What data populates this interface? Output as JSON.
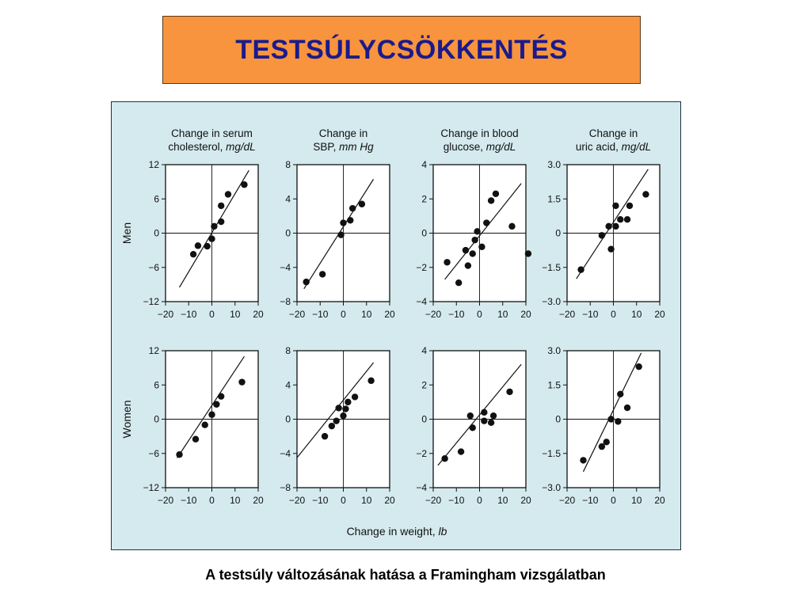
{
  "slide": {
    "title": "TESTSÚLYCSÖKKENTÉS",
    "caption": "A testsúly változásának hatása a Framingham vizsgálatban"
  },
  "figure": {
    "row_labels": [
      "Men",
      "Women"
    ],
    "xlabel": {
      "text": "Change in weight, ",
      "unit": "lb"
    }
  },
  "chart_data": [
    {
      "type": "scatter",
      "row": "Men",
      "title": {
        "plain": "Change in serum\ncholesterol, ",
        "unit": "mg/dL"
      },
      "xlim": [
        -20,
        20
      ],
      "ylim": [
        -12,
        12
      ],
      "yticks": [
        "12",
        "6",
        "0",
        "−6",
        "−12"
      ],
      "xticks": [
        "−20",
        "−10",
        "0",
        "10",
        "20"
      ],
      "points": [
        [
          -8,
          -3.7
        ],
        [
          -6,
          -2.2
        ],
        [
          -2,
          -2.3
        ],
        [
          0,
          -1.0
        ],
        [
          1,
          1.2
        ],
        [
          4,
          2.0
        ],
        [
          4,
          4.8
        ],
        [
          7,
          6.8
        ],
        [
          14,
          8.5
        ]
      ],
      "fit_line": [
        [
          -14,
          -9.5
        ],
        [
          16,
          11.0
        ]
      ]
    },
    {
      "type": "scatter",
      "row": "Men",
      "title": {
        "plain": "Change in\nSBP, ",
        "unit": "mm Hg"
      },
      "xlim": [
        -20,
        20
      ],
      "ylim": [
        -8,
        8
      ],
      "yticks": [
        "8",
        "4",
        "0",
        "−4",
        "−8"
      ],
      "xticks": [
        "−20",
        "−10",
        "0",
        "10",
        "20"
      ],
      "points": [
        [
          -16,
          -5.7
        ],
        [
          -9,
          -4.8
        ],
        [
          -1,
          -0.2
        ],
        [
          0,
          1.2
        ],
        [
          3,
          1.5
        ],
        [
          4,
          2.9
        ],
        [
          8,
          3.4
        ]
      ],
      "fit_line": [
        [
          -17,
          -6.5
        ],
        [
          13,
          6.3
        ]
      ]
    },
    {
      "type": "scatter",
      "row": "Men",
      "title": {
        "plain": "Change in blood\nglucose, ",
        "unit": "mg/dL"
      },
      "xlim": [
        -20,
        20
      ],
      "ylim": [
        -4,
        4
      ],
      "yticks": [
        "4",
        "2",
        "0",
        "−2",
        "−4"
      ],
      "xticks": [
        "−20",
        "−10",
        "0",
        "10",
        "20"
      ],
      "points": [
        [
          -14,
          -1.7
        ],
        [
          -9,
          -2.9
        ],
        [
          -6,
          -1.0
        ],
        [
          -5,
          -1.9
        ],
        [
          -3,
          -1.2
        ],
        [
          -2,
          -0.4
        ],
        [
          -1,
          0.1
        ],
        [
          1,
          -0.8
        ],
        [
          3,
          0.6
        ],
        [
          5,
          1.9
        ],
        [
          7,
          2.3
        ],
        [
          14,
          0.4
        ],
        [
          21,
          -1.2
        ]
      ],
      "fit_line": [
        [
          -15,
          -2.7
        ],
        [
          18,
          2.9
        ]
      ]
    },
    {
      "type": "scatter",
      "row": "Men",
      "title": {
        "plain": "Change in\nuric acid, ",
        "unit": "mg/dL"
      },
      "xlim": [
        -20,
        20
      ],
      "ylim": [
        -3,
        3
      ],
      "yticks": [
        "3.0",
        "1.5",
        "0",
        "−1.5",
        "−3.0"
      ],
      "xticks": [
        "−20",
        "−10",
        "0",
        "10",
        "20"
      ],
      "points": [
        [
          -14,
          -1.6
        ],
        [
          -5,
          -0.1
        ],
        [
          -2,
          0.3
        ],
        [
          -1,
          -0.7
        ],
        [
          1,
          1.2
        ],
        [
          1,
          0.3
        ],
        [
          3,
          0.6
        ],
        [
          6,
          0.6
        ],
        [
          7,
          1.2
        ],
        [
          14,
          1.7
        ]
      ],
      "fit_line": [
        [
          -16,
          -2.0
        ],
        [
          15,
          2.8
        ]
      ]
    },
    {
      "type": "scatter",
      "row": "Women",
      "title": {
        "plain": "",
        "unit": ""
      },
      "xlim": [
        -20,
        20
      ],
      "ylim": [
        -12,
        12
      ],
      "yticks": [
        "12",
        "6",
        "0",
        "−6",
        "−12"
      ],
      "xticks": [
        "−20",
        "−10",
        "0",
        "10",
        "20"
      ],
      "points": [
        [
          -14,
          -6.2
        ],
        [
          -7,
          -3.5
        ],
        [
          -3,
          -1.0
        ],
        [
          0,
          0.8
        ],
        [
          2,
          2.6
        ],
        [
          4,
          4.0
        ],
        [
          13,
          6.5
        ]
      ],
      "fit_line": [
        [
          -15,
          -6.8
        ],
        [
          14,
          11.0
        ]
      ]
    },
    {
      "type": "scatter",
      "row": "Women",
      "title": {
        "plain": "",
        "unit": ""
      },
      "xlim": [
        -20,
        20
      ],
      "ylim": [
        -8,
        8
      ],
      "yticks": [
        "8",
        "4",
        "0",
        "−4",
        "−8"
      ],
      "xticks": [
        "−20",
        "−10",
        "0",
        "10",
        "20"
      ],
      "points": [
        [
          -8,
          -2.0
        ],
        [
          -5,
          -0.8
        ],
        [
          -3,
          -0.2
        ],
        [
          -2,
          1.3
        ],
        [
          0,
          0.4
        ],
        [
          1,
          1.2
        ],
        [
          2,
          2.0
        ],
        [
          5,
          2.6
        ],
        [
          12,
          4.5
        ]
      ],
      "fit_line": [
        [
          -20,
          -4.5
        ],
        [
          13,
          6.6
        ]
      ]
    },
    {
      "type": "scatter",
      "row": "Women",
      "title": {
        "plain": "",
        "unit": ""
      },
      "xlim": [
        -20,
        20
      ],
      "ylim": [
        -4,
        4
      ],
      "yticks": [
        "4",
        "2",
        "0",
        "−2",
        "−4"
      ],
      "xticks": [
        "−20",
        "−10",
        "0",
        "10",
        "20"
      ],
      "points": [
        [
          -15,
          -2.3
        ],
        [
          -8,
          -1.9
        ],
        [
          -4,
          0.2
        ],
        [
          -3,
          -0.5
        ],
        [
          2,
          0.4
        ],
        [
          2,
          -0.1
        ],
        [
          5,
          -0.2
        ],
        [
          6,
          0.2
        ],
        [
          13,
          1.6
        ]
      ],
      "fit_line": [
        [
          -18,
          -2.7
        ],
        [
          18,
          3.2
        ]
      ]
    },
    {
      "type": "scatter",
      "row": "Women",
      "title": {
        "plain": "",
        "unit": ""
      },
      "xlim": [
        -20,
        20
      ],
      "ylim": [
        -3,
        3
      ],
      "yticks": [
        "3.0",
        "1.5",
        "0",
        "−1.5",
        "−3.0"
      ],
      "xticks": [
        "−20",
        "−10",
        "0",
        "10",
        "20"
      ],
      "points": [
        [
          -13,
          -1.8
        ],
        [
          -5,
          -1.2
        ],
        [
          -3,
          -1.0
        ],
        [
          -1,
          0.0
        ],
        [
          2,
          -0.1
        ],
        [
          3,
          1.1
        ],
        [
          6,
          0.5
        ],
        [
          11,
          2.3
        ]
      ],
      "fit_line": [
        [
          -13,
          -2.3
        ],
        [
          12,
          2.9
        ]
      ]
    }
  ]
}
